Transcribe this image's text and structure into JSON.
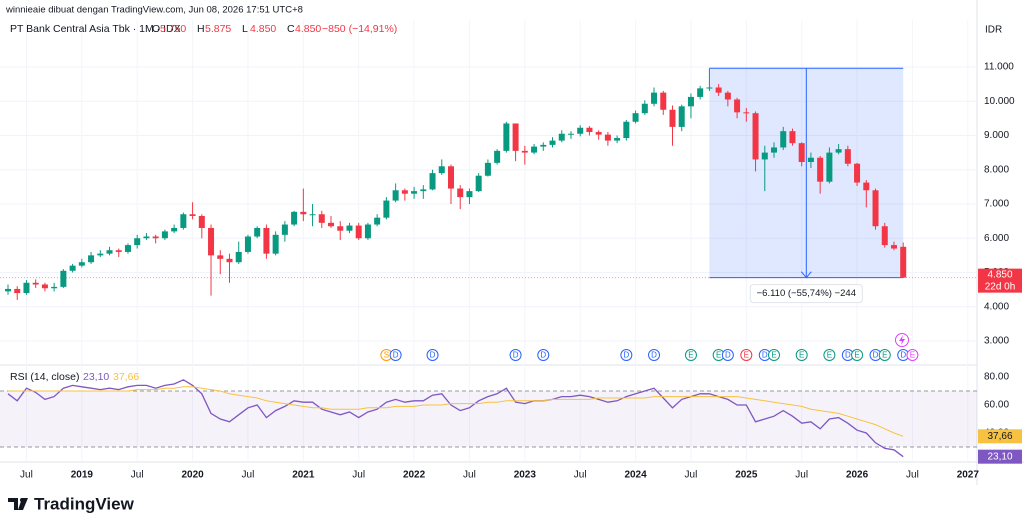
{
  "header": {
    "attribution": "winnieaie dibuat dengan TradingView.com, Jun 08, 2026 17:51 UTC+8",
    "symbol": "PT Bank Central Asia Tbk · 1M · IDX",
    "ohlc": [
      {
        "key": "O",
        "value": 5750,
        "label": "5.750"
      },
      {
        "key": "H",
        "value": 5875,
        "label": "5.875"
      },
      {
        "key": "L",
        "value": 4850,
        "label": "4.850"
      },
      {
        "key": "C",
        "value": 4850,
        "label": "4.850"
      }
    ],
    "change": "−850 (−14,91%)"
  },
  "footer": {
    "brand": "TradingView"
  },
  "chart_data": [
    {
      "type": "candlestick",
      "currency": "IDR",
      "up_color": "#089981",
      "down_color": "#f23645",
      "x": [
        "2018-05",
        "2018-06",
        "2018-07",
        "2018-08",
        "2018-09",
        "2018-10",
        "2018-11",
        "2018-12",
        "2019-01",
        "2019-02",
        "2019-03",
        "2019-04",
        "2019-05",
        "2019-06",
        "2019-07",
        "2019-08",
        "2019-09",
        "2019-10",
        "2019-11",
        "2019-12",
        "2020-01",
        "2020-02",
        "2020-03",
        "2020-04",
        "2020-05",
        "2020-06",
        "2020-07",
        "2020-08",
        "2020-09",
        "2020-10",
        "2020-11",
        "2020-12",
        "2021-01",
        "2021-02",
        "2021-03",
        "2021-04",
        "2021-05",
        "2021-06",
        "2021-07",
        "2021-08",
        "2021-09",
        "2021-10",
        "2021-11",
        "2021-12",
        "2022-01",
        "2022-02",
        "2022-03",
        "2022-04",
        "2022-05",
        "2022-06",
        "2022-07",
        "2022-08",
        "2022-09",
        "2022-10",
        "2022-11",
        "2022-12",
        "2023-01",
        "2023-02",
        "2023-03",
        "2023-04",
        "2023-05",
        "2023-06",
        "2023-07",
        "2023-08",
        "2023-09",
        "2023-10",
        "2023-11",
        "2023-12",
        "2024-01",
        "2024-02",
        "2024-03",
        "2024-04",
        "2024-05",
        "2024-06",
        "2024-07",
        "2024-08",
        "2024-09",
        "2024-10",
        "2024-11",
        "2024-12",
        "2025-01",
        "2025-02",
        "2025-03",
        "2025-04",
        "2025-05",
        "2025-06",
        "2025-07",
        "2025-08",
        "2025-09",
        "2025-10",
        "2025-11",
        "2025-12",
        "2026-01",
        "2026-02",
        "2026-03",
        "2026-04",
        "2026-05",
        "2026-06"
      ],
      "open": [
        4450,
        4520,
        4400,
        4700,
        4650,
        4540,
        4580,
        5050,
        5200,
        5300,
        5500,
        5550,
        5650,
        5600,
        5800,
        6000,
        6050,
        6000,
        6200,
        6300,
        6700,
        6650,
        6300,
        5500,
        5400,
        5300,
        5600,
        6050,
        6300,
        5550,
        6100,
        6400,
        6770,
        6700,
        6700,
        6450,
        6350,
        6220,
        6370,
        6000,
        6400,
        6600,
        7100,
        7400,
        7300,
        7375,
        7425,
        7900,
        8100,
        7450,
        7200,
        7375,
        7825,
        8200,
        8550,
        9350,
        8550,
        8500,
        8675,
        8725,
        8850,
        9050,
        9050,
        9225,
        9100,
        9025,
        8850,
        8925,
        9400,
        9650,
        9925,
        10250,
        9750,
        9250,
        9850,
        10125,
        10375,
        10400,
        10250,
        10050,
        9675,
        9650,
        8300,
        8500,
        8650,
        9125,
        8775,
        8225,
        8350,
        7650,
        8500,
        8600,
        8175,
        7625,
        7400,
        6350,
        5800,
        5750
      ],
      "high": [
        4650,
        4600,
        4780,
        4800,
        4700,
        4700,
        5100,
        5250,
        5400,
        5600,
        5650,
        5750,
        5700,
        5850,
        6100,
        6150,
        6100,
        6250,
        6400,
        6750,
        7050,
        6700,
        6400,
        5650,
        5550,
        5900,
        6100,
        6350,
        6400,
        6200,
        6500,
        6800,
        7450,
        7000,
        6800,
        6650,
        6500,
        6450,
        6450,
        6450,
        6700,
        7200,
        7600,
        7450,
        7500,
        7550,
        8000,
        8300,
        8150,
        7550,
        7450,
        7900,
        8300,
        8600,
        9400,
        9350,
        8700,
        8750,
        8800,
        8950,
        9150,
        9125,
        9300,
        9275,
        9150,
        9100,
        9000,
        9450,
        9725,
        10025,
        10400,
        10300,
        9875,
        9900,
        10225,
        10450,
        10960,
        10500,
        10300,
        10100,
        9800,
        9700,
        8700,
        8800,
        9250,
        9200,
        8800,
        8500,
        8400,
        8650,
        8750,
        8700,
        8200,
        7700,
        7450,
        6450,
        5900,
        5875
      ],
      "low": [
        4350,
        4200,
        4350,
        4550,
        4450,
        4450,
        4550,
        5000,
        5150,
        5250,
        5450,
        5500,
        5450,
        5550,
        5700,
        5950,
        5850,
        5950,
        6150,
        6250,
        6550,
        6000,
        4325,
        4950,
        4700,
        5250,
        5550,
        6000,
        5400,
        5500,
        5900,
        6350,
        6500,
        6350,
        6300,
        6300,
        5950,
        6150,
        5950,
        5950,
        6350,
        6550,
        7050,
        7100,
        7150,
        7150,
        7400,
        7850,
        7000,
        6850,
        7000,
        7350,
        7800,
        8150,
        8500,
        8250,
        8150,
        8450,
        8550,
        8650,
        8800,
        8900,
        8975,
        9000,
        8875,
        8700,
        8775,
        8850,
        9350,
        9600,
        9850,
        9600,
        8700,
        9125,
        9500,
        10050,
        10300,
        10150,
        9850,
        9500,
        9400,
        7950,
        7375,
        8350,
        8575,
        8700,
        8100,
        8050,
        7300,
        7600,
        8450,
        8100,
        7525,
        6900,
        6250,
        5725,
        5650,
        4850
      ],
      "close": [
        4520,
        4400,
        4700,
        4650,
        4540,
        4580,
        5050,
        5200,
        5300,
        5500,
        5550,
        5650,
        5600,
        5800,
        6000,
        6050,
        6000,
        6200,
        6300,
        6700,
        6650,
        6300,
        5500,
        5400,
        5300,
        5600,
        6050,
        6300,
        5550,
        6100,
        6400,
        6770,
        6700,
        6700,
        6450,
        6350,
        6220,
        6370,
        6000,
        6400,
        6600,
        7100,
        7400,
        7300,
        7375,
        7425,
        7900,
        8100,
        7450,
        7200,
        7375,
        7825,
        8200,
        8550,
        9350,
        8550,
        8500,
        8675,
        8725,
        8850,
        9050,
        9050,
        9225,
        9100,
        9025,
        8850,
        8925,
        9400,
        9650,
        9925,
        10250,
        9750,
        9250,
        9850,
        10125,
        10375,
        10400,
        10250,
        10050,
        9675,
        9650,
        8300,
        8500,
        8650,
        9125,
        8775,
        8225,
        8350,
        7650,
        8500,
        8600,
        8175,
        7625,
        7400,
        6350,
        5800,
        5700,
        4850
      ],
      "ylim": [
        2300,
        12370
      ],
      "yticks": [
        {
          "value": 11000,
          "label": "11.000"
        },
        {
          "value": 10000,
          "label": "10.000"
        },
        {
          "value": 9000,
          "label": "9.000"
        },
        {
          "value": 8000,
          "label": "8.000"
        },
        {
          "value": 7000,
          "label": "7.000"
        },
        {
          "value": 6000,
          "label": "6.000"
        },
        {
          "value": 5000,
          "label": "5.000"
        },
        {
          "value": 4000,
          "label": "4.000"
        },
        {
          "value": 3000,
          "label": "3.000"
        }
      ],
      "xticks": [
        {
          "value": "2018-07",
          "label": "Jul"
        },
        {
          "value": "2019-01",
          "label": "2019"
        },
        {
          "value": "2019-07",
          "label": "Jul"
        },
        {
          "value": "2020-01",
          "label": "2020"
        },
        {
          "value": "2020-07",
          "label": "Jul"
        },
        {
          "value": "2021-01",
          "label": "2021"
        },
        {
          "value": "2021-07",
          "label": "Jul"
        },
        {
          "value": "2022-01",
          "label": "2022"
        },
        {
          "value": "2022-07",
          "label": "Jul"
        },
        {
          "value": "2023-01",
          "label": "2023"
        },
        {
          "value": "2023-07",
          "label": "Jul"
        },
        {
          "value": "2024-01",
          "label": "2024"
        },
        {
          "value": "2024-07",
          "label": "Jul"
        },
        {
          "value": "2025-01",
          "label": "2025"
        },
        {
          "value": "2025-07",
          "label": "Jul"
        },
        {
          "value": "2026-01",
          "label": "2026"
        },
        {
          "value": "2026-07",
          "label": "Jul"
        },
        {
          "value": "2027-01",
          "label": "2027"
        }
      ],
      "last_price": {
        "value": 4850,
        "label": "4.850"
      },
      "countdown": "22d 0h",
      "measure": {
        "x_from": "2024-09",
        "x_to": "2026-06",
        "from": 10960,
        "to": 4850,
        "label": "−6.110 (−55,74%) −244"
      },
      "events": [
        {
          "x": "2021-10",
          "label": "S",
          "color": "#ff9800"
        },
        {
          "x": "2021-11",
          "label": "D",
          "color": "#2962ff"
        },
        {
          "x": "2022-03",
          "label": "D",
          "color": "#2962ff"
        },
        {
          "x": "2022-12",
          "label": "D",
          "color": "#2962ff"
        },
        {
          "x": "2023-03",
          "label": "D",
          "color": "#2962ff"
        },
        {
          "x": "2023-12",
          "label": "D",
          "color": "#2962ff"
        },
        {
          "x": "2024-03",
          "label": "D",
          "color": "#2962ff"
        },
        {
          "x": "2024-07",
          "label": "E",
          "color": "#089981"
        },
        {
          "x": "2024-10",
          "label": "E",
          "color": "#089981"
        },
        {
          "x": "2024-11",
          "label": "D",
          "color": "#2962ff"
        },
        {
          "x": "2025-01",
          "label": "E",
          "color": "#f23645"
        },
        {
          "x": "2025-03",
          "label": "D",
          "color": "#2962ff"
        },
        {
          "x": "2025-04",
          "label": "E",
          "color": "#089981"
        },
        {
          "x": "2025-07",
          "label": "E",
          "color": "#089981"
        },
        {
          "x": "2025-10",
          "label": "E",
          "color": "#089981"
        },
        {
          "x": "2025-12",
          "label": "D",
          "color": "#2962ff"
        },
        {
          "x": "2026-01",
          "label": "E",
          "color": "#089981"
        },
        {
          "x": "2026-03",
          "label": "D",
          "color": "#2962ff"
        },
        {
          "x": "2026-04",
          "label": "E",
          "color": "#089981"
        },
        {
          "x": "2026-06",
          "label": "D",
          "color": "#2962ff"
        },
        {
          "x": "2026-07",
          "label": "E",
          "color": "#e040fb"
        }
      ]
    },
    {
      "type": "line",
      "title": "RSI (14, close)",
      "x": [
        "2018-05",
        "2018-06",
        "2018-07",
        "2018-08",
        "2018-09",
        "2018-10",
        "2018-11",
        "2018-12",
        "2019-01",
        "2019-02",
        "2019-03",
        "2019-04",
        "2019-05",
        "2019-06",
        "2019-07",
        "2019-08",
        "2019-09",
        "2019-10",
        "2019-11",
        "2019-12",
        "2020-01",
        "2020-02",
        "2020-03",
        "2020-04",
        "2020-05",
        "2020-06",
        "2020-07",
        "2020-08",
        "2020-09",
        "2020-10",
        "2020-11",
        "2020-12",
        "2021-01",
        "2021-02",
        "2021-03",
        "2021-04",
        "2021-05",
        "2021-06",
        "2021-07",
        "2021-08",
        "2021-09",
        "2021-10",
        "2021-11",
        "2021-12",
        "2022-01",
        "2022-02",
        "2022-03",
        "2022-04",
        "2022-05",
        "2022-06",
        "2022-07",
        "2022-08",
        "2022-09",
        "2022-10",
        "2022-11",
        "2022-12",
        "2023-01",
        "2023-02",
        "2023-03",
        "2023-04",
        "2023-05",
        "2023-06",
        "2023-07",
        "2023-08",
        "2023-09",
        "2023-10",
        "2023-11",
        "2023-12",
        "2024-01",
        "2024-02",
        "2024-03",
        "2024-04",
        "2024-05",
        "2024-06",
        "2024-07",
        "2024-08",
        "2024-09",
        "2024-10",
        "2024-11",
        "2024-12",
        "2025-01",
        "2025-02",
        "2025-03",
        "2025-04",
        "2025-05",
        "2025-06",
        "2025-07",
        "2025-08",
        "2025-09",
        "2025-10",
        "2025-11",
        "2025-12",
        "2026-01",
        "2026-02",
        "2026-03",
        "2026-04",
        "2026-05",
        "2026-06"
      ],
      "series": [
        {
          "color": "#7e57c2",
          "last_label": {
            "value": 23.1,
            "label": "23,10"
          },
          "values": [
            68,
            63,
            72,
            69,
            64,
            66,
            72,
            74,
            73,
            72,
            71,
            72,
            71,
            73,
            74,
            74,
            72,
            74,
            75,
            78,
            74,
            68,
            54,
            50,
            48,
            53,
            58,
            60,
            51,
            56,
            59,
            63,
            62,
            62,
            57,
            55,
            53,
            55,
            51,
            55,
            57,
            62,
            64,
            62,
            63,
            63,
            67,
            68,
            60,
            56,
            58,
            63,
            66,
            68,
            72,
            62,
            61,
            63,
            63,
            64,
            66,
            66,
            67,
            66,
            64,
            62,
            63,
            66,
            68,
            70,
            72,
            65,
            58,
            64,
            66,
            68,
            68,
            66,
            64,
            60,
            60,
            48,
            50,
            52,
            56,
            52,
            47,
            48,
            43,
            50,
            51,
            47,
            42,
            40,
            33,
            29,
            28,
            23.1
          ]
        },
        {
          "color": "#f7c242",
          "last_label": {
            "value": 37.66,
            "label": "37,66"
          },
          "values": [
            70,
            70,
            70,
            70,
            70,
            70,
            70,
            70,
            70,
            70,
            70,
            70,
            70,
            70,
            71,
            71,
            71,
            72,
            72,
            73,
            73,
            72,
            71,
            70,
            68,
            67,
            66,
            65,
            63,
            62,
            61,
            60,
            59,
            58,
            58,
            57,
            57,
            57,
            57,
            58,
            58,
            58,
            59,
            59,
            59,
            60,
            60,
            60,
            61,
            61,
            61,
            61,
            62,
            62,
            63,
            63,
            63,
            63,
            63,
            64,
            64,
            64,
            64,
            64,
            65,
            65,
            65,
            65,
            65,
            65,
            66,
            66,
            66,
            66,
            66,
            66,
            66,
            66,
            66,
            66,
            65,
            64,
            63,
            62,
            61,
            60,
            59,
            57,
            56,
            55,
            54,
            52,
            50,
            48,
            46,
            43,
            40,
            37.66
          ]
        }
      ],
      "band": [
        30,
        70
      ],
      "ylim": [
        19.3,
        88.6
      ],
      "yticks": [
        {
          "value": 80,
          "label": "80.00"
        },
        {
          "value": 60,
          "label": "60.00"
        },
        {
          "value": 40,
          "label": "40.00"
        }
      ]
    }
  ]
}
